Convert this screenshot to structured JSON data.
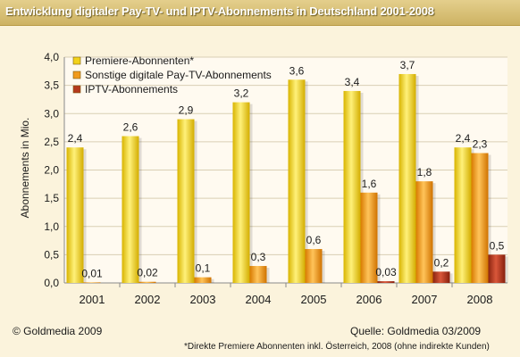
{
  "chart_data": {
    "type": "bar",
    "title": "Entwicklung digitaler Pay-TV- und IPTV-Abonnements in Deutschland 2001-2008",
    "ylabel": "Abonnements in Mio.",
    "xlabel": "",
    "ylim": [
      0,
      4
    ],
    "yticks": [
      "0,0",
      "0,5",
      "1,0",
      "1,5",
      "2,0",
      "2,5",
      "3,0",
      "3,5",
      "4,0"
    ],
    "grid": true,
    "legend_position": "top-left",
    "categories": [
      "2001",
      "2002",
      "2003",
      "2004",
      "2005",
      "2006",
      "2007",
      "2008"
    ],
    "series": [
      {
        "name": "Premiere-Abonnenten*",
        "color": "#f2d21b",
        "values": [
          2.4,
          2.6,
          2.9,
          3.2,
          3.6,
          3.4,
          3.7,
          2.4
        ],
        "labels": [
          "2,4",
          "2,6",
          "2,9",
          "3,2",
          "3,6",
          "3,4",
          "3,7",
          "2,4"
        ]
      },
      {
        "name": "Sonstige digitale Pay-TV-Abonnements",
        "color": "#f09a1c",
        "values": [
          0.01,
          0.02,
          0.1,
          0.3,
          0.6,
          1.6,
          1.8,
          2.3
        ],
        "labels": [
          "0,01",
          "0,02",
          "0,1",
          "0,3",
          "0,6",
          "1,6",
          "1,8",
          "2,3"
        ]
      },
      {
        "name": "IPTV-Abonnements",
        "color": "#b5391d",
        "values": [
          0,
          0,
          0,
          0,
          0,
          0.03,
          0.2,
          0.5
        ],
        "labels": [
          "",
          "",
          "",
          "",
          "",
          "0,03",
          "0,2",
          "0,5"
        ]
      }
    ]
  },
  "footer": {
    "copyright": "© Goldmedia 2009",
    "source": "Quelle: Goldmedia 03/2009",
    "footnote": "*Direkte Premiere Abonnenten inkl. Österreich, 2008 (ohne indirekte Kunden)"
  }
}
